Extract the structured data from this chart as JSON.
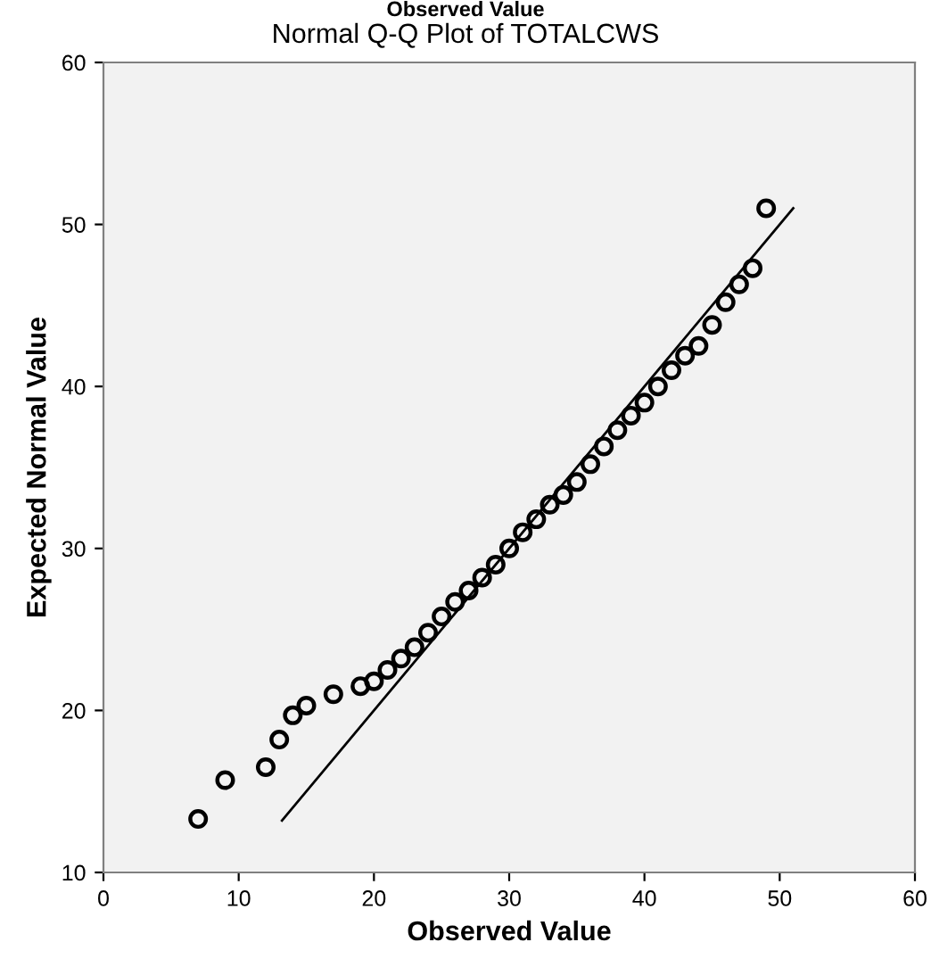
{
  "chart_data": {
    "type": "scatter",
    "title": "Normal Q-Q Plot of TOTALCWS",
    "xlabel": "Observed Value",
    "ylabel": "Expected Normal Value",
    "annotations": [
      "Observed Value"
    ],
    "grid": false,
    "xlim": [
      0,
      60
    ],
    "xticks": [
      0,
      10,
      20,
      30,
      40,
      50,
      60
    ],
    "ylim": [
      10,
      60
    ],
    "yticks": [
      10,
      20,
      30,
      40,
      50,
      60
    ],
    "series": [
      {
        "marker": "circle",
        "color": "#000000",
        "x": [
          7,
          9,
          12,
          13,
          14,
          15,
          17,
          19,
          20,
          21,
          22,
          23,
          24,
          25,
          26,
          27,
          28,
          29,
          30,
          31,
          32,
          33,
          34,
          35,
          36,
          37,
          38,
          39,
          40,
          41,
          42,
          43,
          44,
          45,
          46,
          47,
          48,
          49
        ],
        "values": [
          13.3,
          15.7,
          16.5,
          18.2,
          19.7,
          20.3,
          21.0,
          21.5,
          21.8,
          22.5,
          23.2,
          23.9,
          24.8,
          25.8,
          26.7,
          27.4,
          28.2,
          29.0,
          30.0,
          31.0,
          31.8,
          32.7,
          33.3,
          34.1,
          35.2,
          36.3,
          37.3,
          38.2,
          39.0,
          40.0,
          41.0,
          41.9,
          42.5,
          43.8,
          45.2,
          46.3,
          47.3,
          51.0
        ]
      },
      {
        "type": "line",
        "color": "#000000",
        "x": [
          13.2,
          51
        ],
        "values": [
          13.2,
          51
        ],
        "line_style": "solid",
        "marker": "none"
      }
    ]
  }
}
